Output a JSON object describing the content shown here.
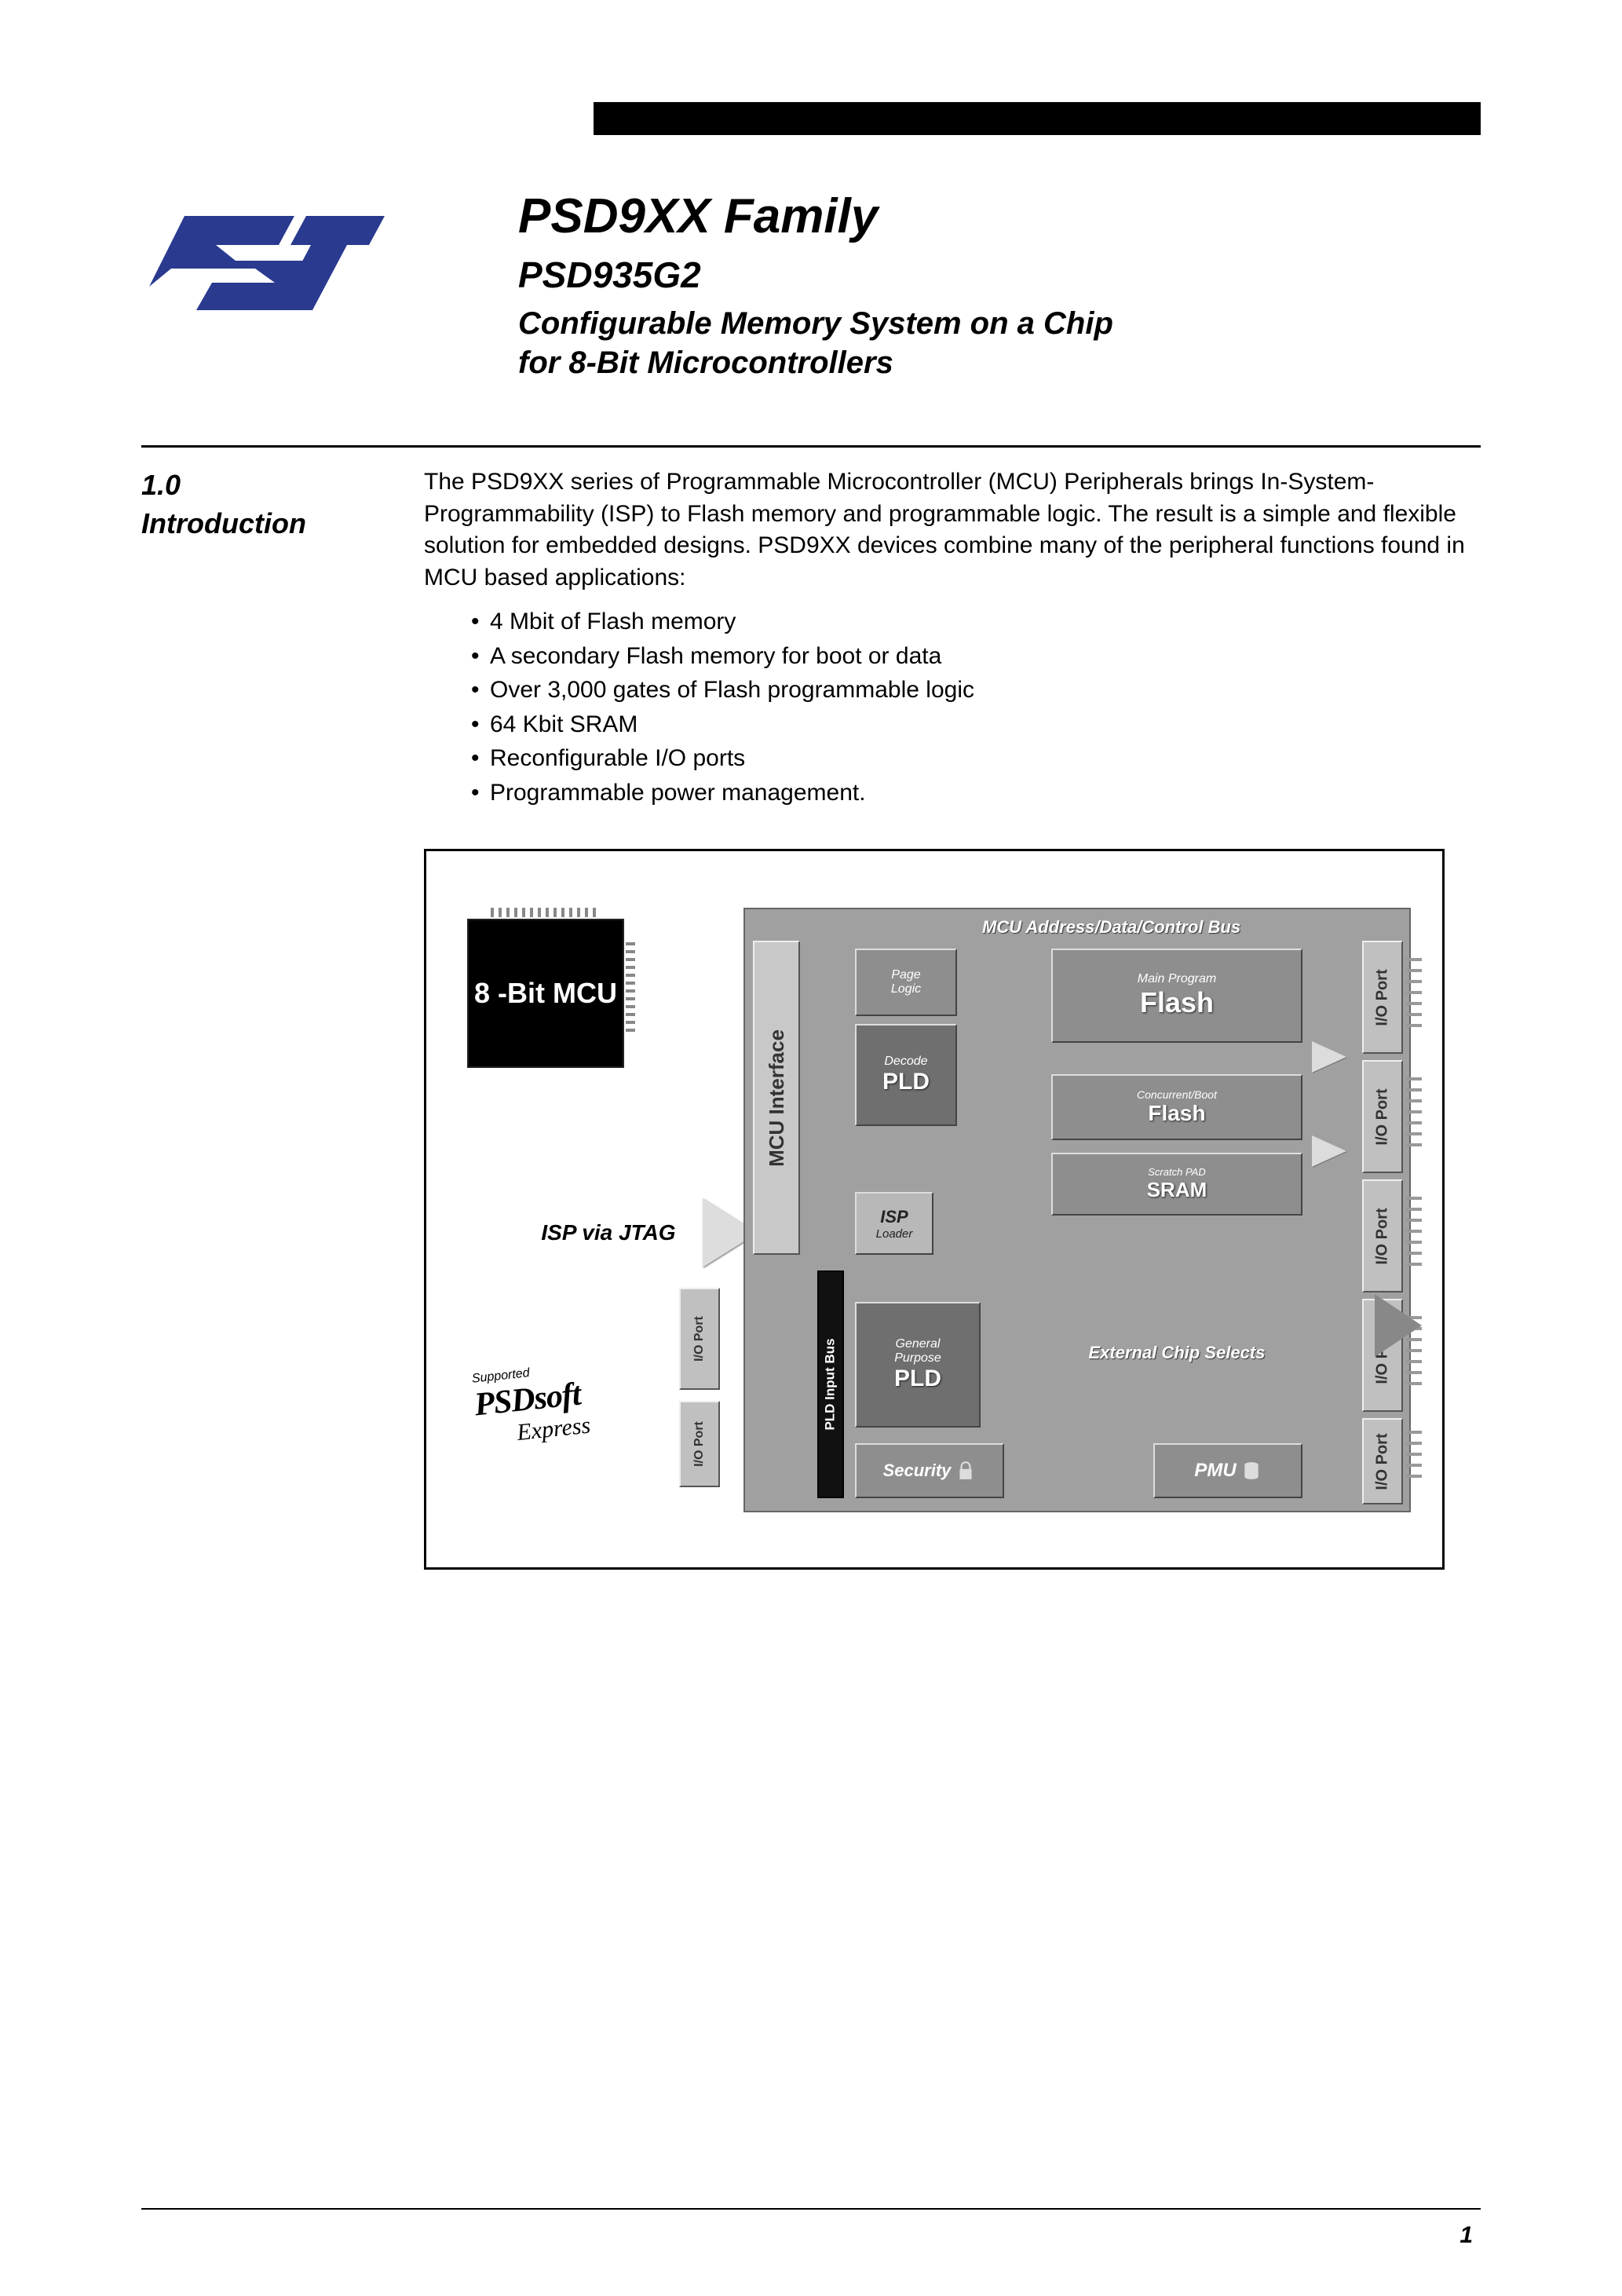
{
  "header": {
    "family_title": "PSD9XX Family",
    "part_title": "PSD935G2",
    "subtitle_l1": "Configurable Memory System on a Chip",
    "subtitle_l2": "for 8-Bit Microcontrollers"
  },
  "section": {
    "num_label": "1.0",
    "title": "Introduction",
    "para": "The PSD9XX series of Programmable Microcontroller (MCU) Peripherals brings In-System-Programmability (ISP) to Flash memory and programmable logic. The result is a simple and flexible solution for embedded designs. PSD9XX devices combine many of the peripheral functions found in MCU based applications:",
    "bullets": [
      "4 Mbit of Flash memory",
      "A secondary Flash memory for boot or data",
      "Over 3,000 gates of Flash programmable logic",
      "64 Kbit SRAM",
      "Reconfigurable I/O ports",
      "Programmable power management."
    ]
  },
  "diagram": {
    "mcu_ext": "8 -Bit MCU",
    "isp_via": "ISP via JTAG",
    "bus_title": "MCU Address/Data/Control Bus",
    "mcu_interface": "MCU Interface",
    "pld_input_bus": "PLD Input Bus",
    "page_logic": {
      "l1": "Page",
      "l2": "Logic"
    },
    "decode_pld": {
      "l1": "Decode",
      "l2": "PLD"
    },
    "isp": {
      "l1": "ISP",
      "l2": "Loader"
    },
    "gp_pld": {
      "l1": "General",
      "l2": "Purpose",
      "l3": "PLD"
    },
    "security": "Security",
    "main_flash": {
      "l1": "Main Program",
      "l2": "Flash"
    },
    "boot_flash": {
      "l1": "Concurrent/Boot",
      "l2": "Flash"
    },
    "sram": {
      "l1": "Scratch PAD",
      "l2": "SRAM"
    },
    "ext_cs": "External Chip Selects",
    "pmu": "PMU",
    "io_port": "I/O Port",
    "psdsoft": {
      "sup": "Supported",
      "main": "PSDsoft",
      "exp": "Express"
    },
    "colors": {
      "chip_bg": "#a0a0a0",
      "block_bg": "#8e8e8e",
      "block_dark": "#6f6f6f",
      "light": "#c8c8c8",
      "text_white": "#ffffff"
    }
  },
  "footer": {
    "page": "1"
  }
}
